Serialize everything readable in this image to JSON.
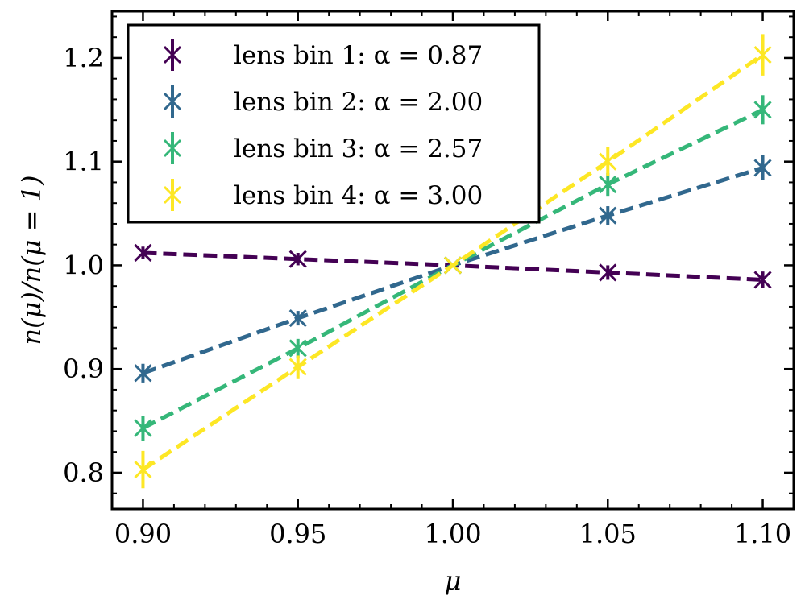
{
  "chart_data": {
    "type": "line",
    "xlabel": "μ",
    "ylabel": "n(μ)/n(μ = 1)",
    "xlim": [
      0.89,
      1.11
    ],
    "ylim": [
      0.765,
      1.245
    ],
    "x": [
      0.9,
      0.95,
      1.0,
      1.05,
      1.1
    ],
    "xticks": [
      0.9,
      0.95,
      1.0,
      1.05,
      1.1
    ],
    "xtick_labels": [
      "0.90",
      "0.95",
      "1.00",
      "1.05",
      "1.10"
    ],
    "yticks": [
      0.8,
      0.9,
      1.0,
      1.1,
      1.2
    ],
    "ytick_labels": [
      "0.8",
      "0.9",
      "1.0",
      "1.1",
      "1.2"
    ],
    "grid": false,
    "legend_position": "top-left",
    "series": [
      {
        "name": "lens bin 1: α = 0.87",
        "color": "#440154",
        "values": [
          1.012,
          1.006,
          1.0,
          0.993,
          0.986
        ],
        "errors": [
          0.006,
          0.006,
          0.0,
          0.007,
          0.008
        ]
      },
      {
        "name": "lens bin 2: α = 2.00",
        "color": "#31688e",
        "values": [
          0.896,
          0.949,
          1.0,
          1.048,
          1.094
        ],
        "errors": [
          0.009,
          0.007,
          0.0,
          0.009,
          0.012
        ]
      },
      {
        "name": "lens bin 3: α = 2.57",
        "color": "#35b779",
        "values": [
          0.843,
          0.92,
          1.0,
          1.078,
          1.15
        ],
        "errors": [
          0.012,
          0.009,
          0.0,
          0.011,
          0.014
        ]
      },
      {
        "name": "lens bin 4: α = 3.00",
        "color": "#fde725",
        "values": [
          0.803,
          0.902,
          1.0,
          1.1,
          1.203
        ],
        "errors": [
          0.018,
          0.011,
          0.0,
          0.014,
          0.02
        ]
      }
    ]
  }
}
